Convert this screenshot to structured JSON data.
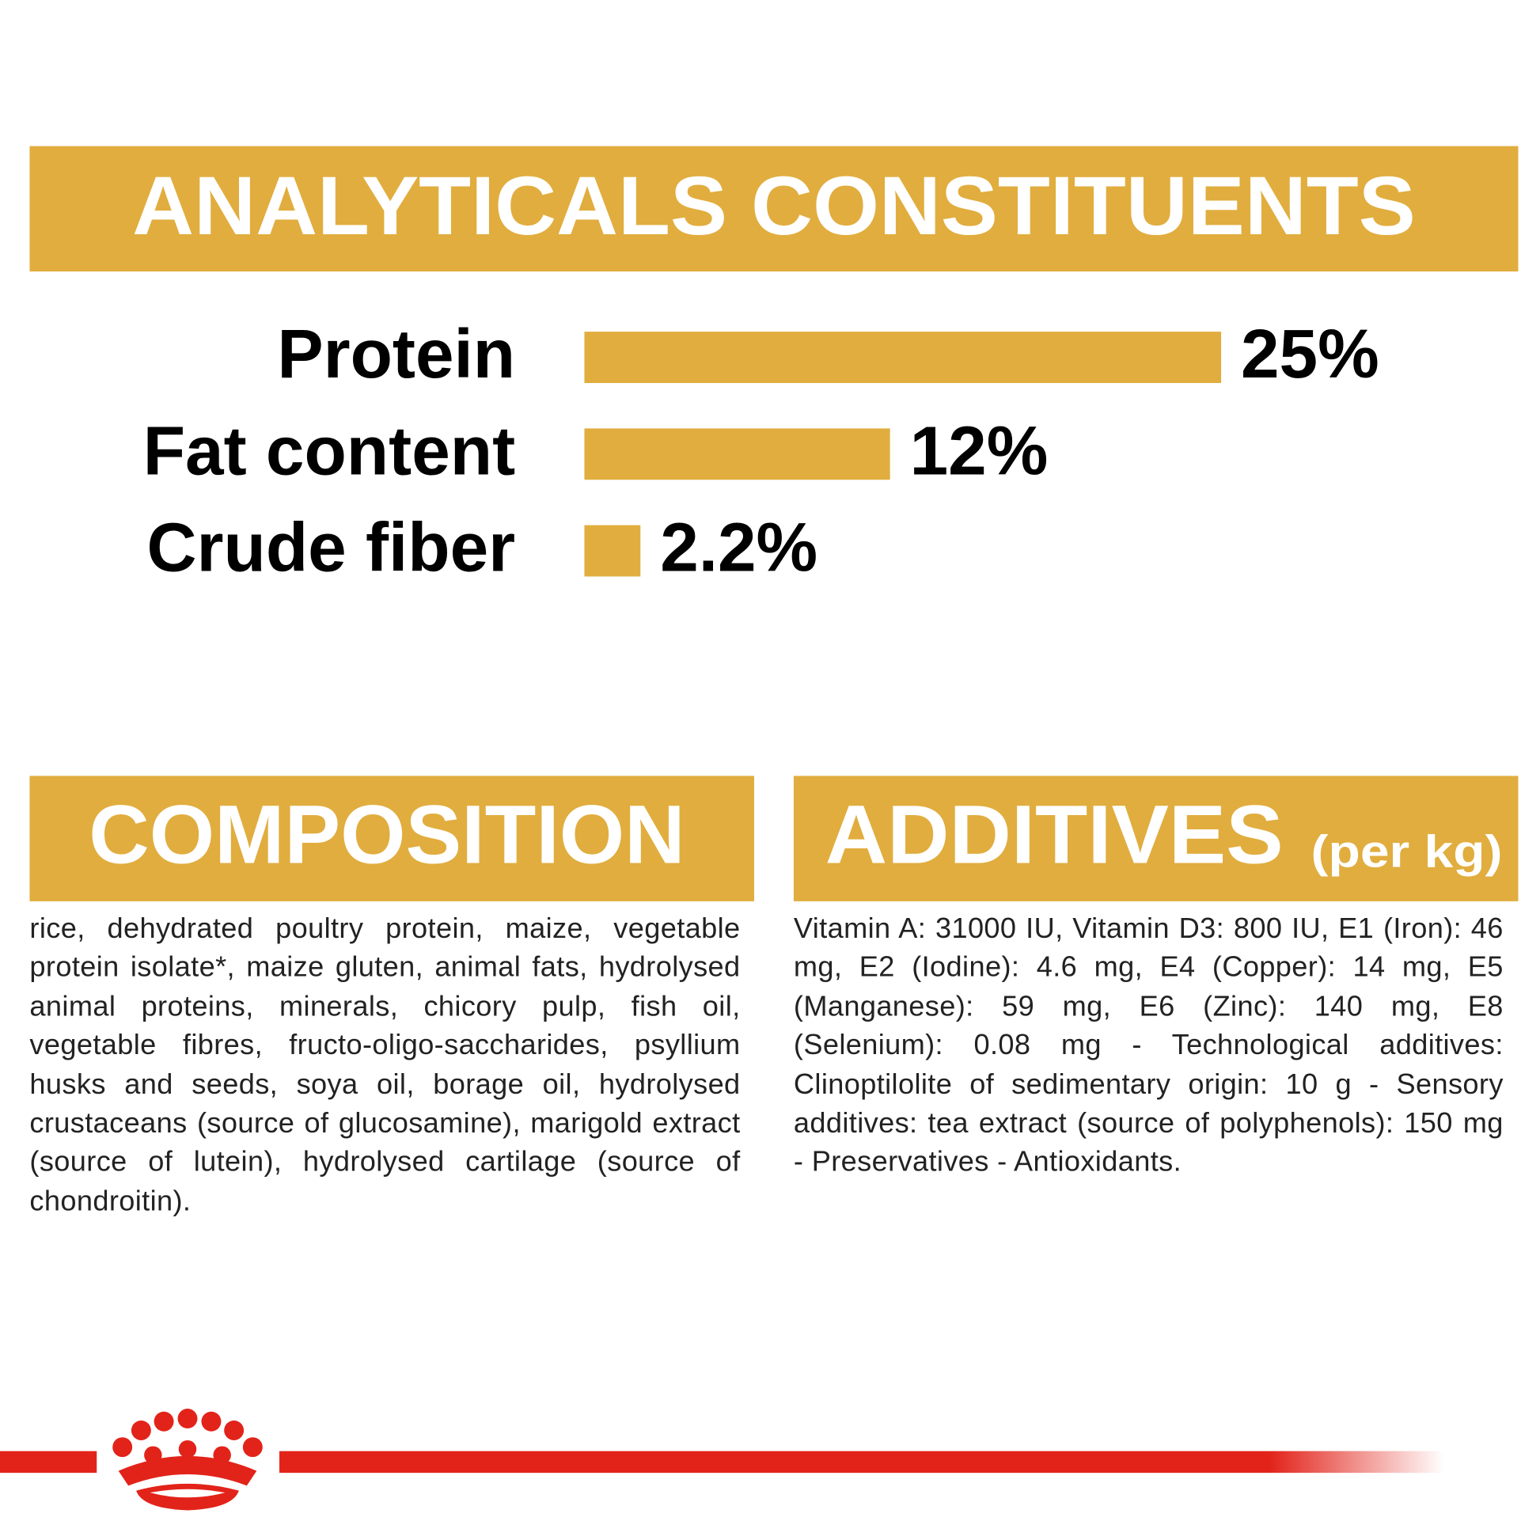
{
  "chart_data": {
    "type": "bar",
    "orientation": "horizontal",
    "title": "ANALYTICALS CONSTITUENTS",
    "categories": [
      "Protein",
      "Fat content",
      "Crude fiber"
    ],
    "values": [
      25,
      12,
      2.2
    ],
    "value_labels": [
      "25%",
      "12%",
      "2.2%"
    ],
    "color": "#e1ad3e"
  },
  "composition": {
    "title": "COMPOSITION",
    "text": "rice, dehydrated poultry protein, maize, vegetable protein isolate*, maize gluten, animal fats, hydrolysed animal proteins, minerals, chicory pulp, fish oil, vegetable fibres, fructo-oligo-saccharides, psyllium husks and seeds, soya oil, borage oil, hydrolysed crustaceans (source of glucosamine), marigold extract (source of lutein), hydrolysed cartilage (source of chondroitin)."
  },
  "additives": {
    "title": "ADDITIVES",
    "subtitle": "(per kg)",
    "text": "Vitamin A: 31000 IU, Vitamin D3: 800 IU, E1 (Iron): 46 mg, E2 (Iodine): 4.6 mg, E4 (Copper): 14 mg, E5 (Manganese): 59 mg, E6 (Zinc): 140 mg, E8 (Selenium): 0.08 mg - Technological additives: Clinoptilolite of sedimentary origin: 10 g - Sensory additives: tea extract (source of polyphenols): 150 mg - Preservatives - Antioxidants."
  }
}
